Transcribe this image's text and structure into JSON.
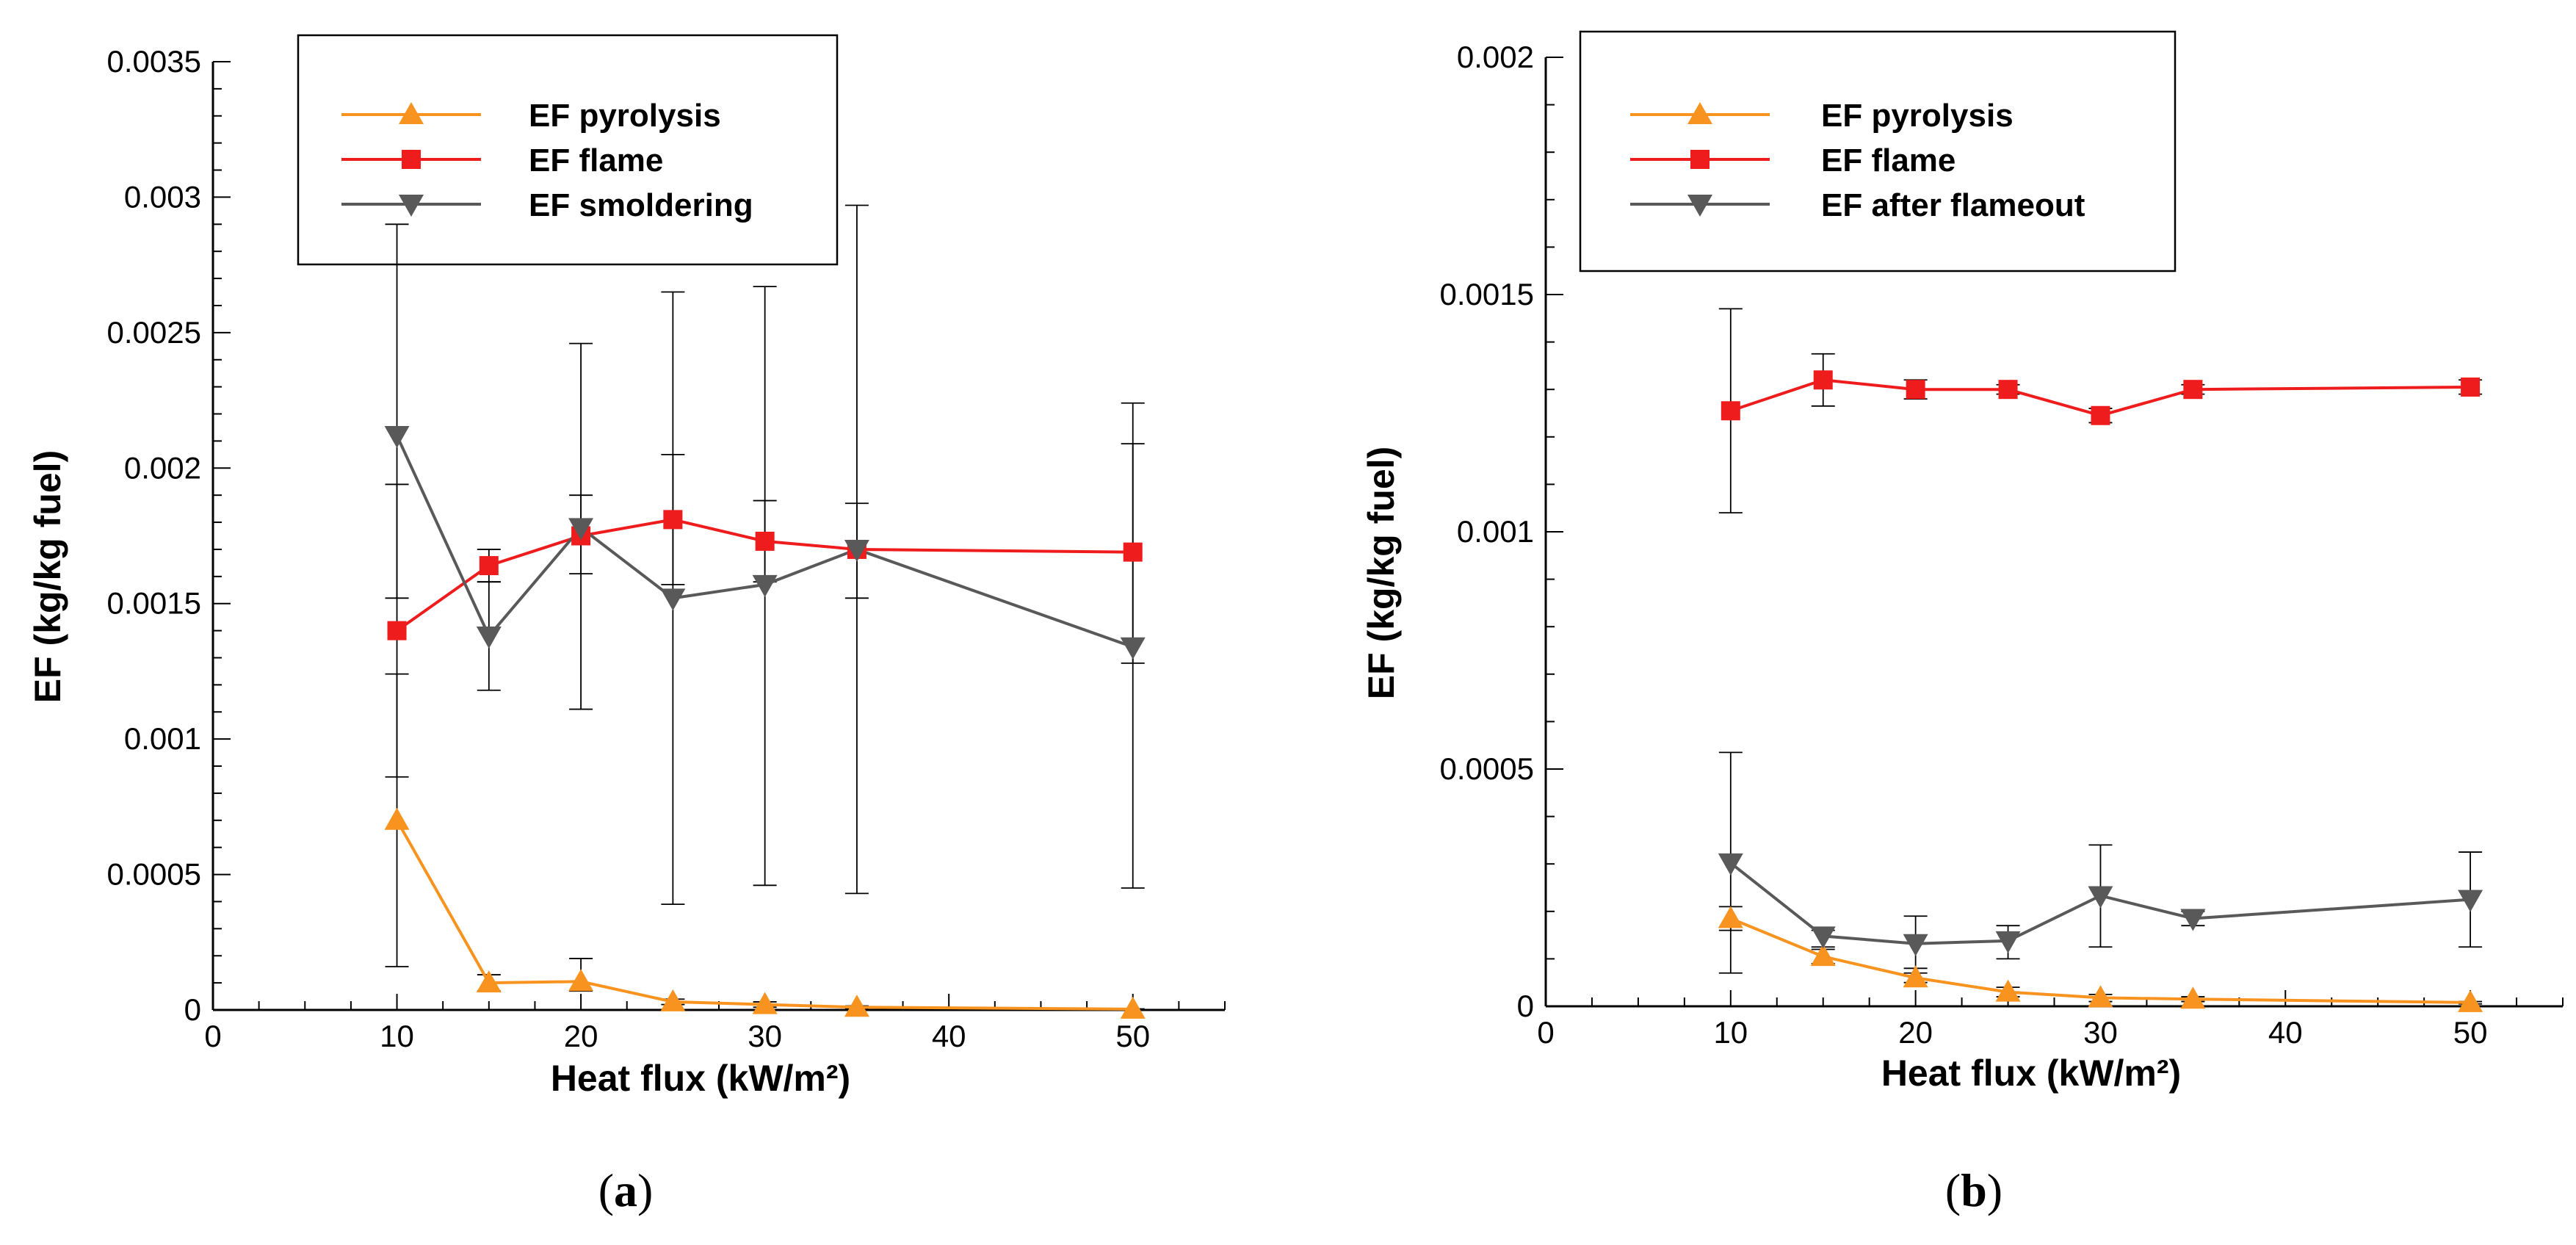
{
  "chart_data": [
    {
      "type": "line",
      "panel_label": "a",
      "xlabel": "Heat flux (kW/m²)",
      "ylabel": "EF (kg/kg fuel)",
      "xlim": [
        0,
        55
      ],
      "ylim": [
        0,
        0.0035
      ],
      "xticks": [
        0,
        10,
        20,
        30,
        40,
        50
      ],
      "yticks": [
        0,
        0.0005,
        0.001,
        0.0015,
        0.002,
        0.0025,
        0.003,
        0.0035
      ],
      "ytick_labels": [
        "0",
        "0.0005",
        "0.001",
        "0.0015",
        "0.002",
        "0.0025",
        "0.003",
        "0.0035"
      ],
      "legend_position": "top-left",
      "series": [
        {
          "name": "EF pyrolysis",
          "color": "#f7931e",
          "marker": "triangle-up",
          "x": [
            10,
            15,
            20,
            25,
            30,
            35,
            50
          ],
          "y": [
            0.0007,
            0.0001,
            0.000105,
            3e-05,
            2e-05,
            1e-05,
            3e-06
          ],
          "err_low": [
            0.00016,
            7e-05,
            7e-05,
            2e-05,
            1e-05,
            5e-06,
            2e-06
          ],
          "err_high": [
            0.00124,
            0.00013,
            0.00019,
            4e-05,
            3e-05,
            1.5e-05,
            4e-06
          ]
        },
        {
          "name": "EF flame",
          "color": "#ee1c1c",
          "marker": "square",
          "x": [
            10,
            15,
            20,
            25,
            30,
            35,
            50
          ],
          "y": [
            0.0014,
            0.00164,
            0.00175,
            0.00181,
            0.00173,
            0.0017,
            0.00169
          ],
          "err_low": [
            0.00086,
            0.00158,
            0.00161,
            0.00157,
            0.00158,
            0.00152,
            0.00128
          ],
          "err_high": [
            0.00194,
            0.0017,
            0.0019,
            0.00205,
            0.00188,
            0.00187,
            0.00209
          ]
        },
        {
          "name": "EF smoldering",
          "color": "#595959",
          "marker": "triangle-down",
          "x": [
            10,
            15,
            20,
            25,
            30,
            35,
            50
          ],
          "y": [
            0.00212,
            0.00138,
            0.00178,
            0.00152,
            0.00157,
            0.0017,
            0.00134
          ],
          "err_low": [
            0.00152,
            0.00118,
            0.00111,
            0.00039,
            0.00046,
            0.00043,
            0.00045
          ],
          "err_high": [
            0.0029,
            0.00158,
            0.00246,
            0.00265,
            0.00267,
            0.00297,
            0.00224
          ]
        }
      ]
    },
    {
      "type": "line",
      "panel_label": "b",
      "xlabel": "Heat flux (kW/m²)",
      "ylabel": "EF (kg/kg fuel)",
      "xlim": [
        0,
        55
      ],
      "ylim": [
        0,
        0.002
      ],
      "xticks": [
        0,
        10,
        20,
        30,
        40,
        50
      ],
      "yticks": [
        0,
        0.0005,
        0.001,
        0.0015,
        0.002
      ],
      "ytick_labels": [
        "0",
        "0.0005",
        "0.001",
        "0.0015",
        "0.002"
      ],
      "legend_position": "top-left",
      "series": [
        {
          "name": "EF pyrolysis",
          "color": "#f7931e",
          "marker": "triangle-up",
          "x": [
            10,
            15,
            20,
            25,
            30,
            35,
            50
          ],
          "y": [
            0.000185,
            0.000105,
            6e-05,
            3e-05,
            1.8e-05,
            1.5e-05,
            8e-06
          ],
          "err_low": [
            0.00016,
            9e-05,
            5e-05,
            2e-05,
            1e-05,
            1e-05,
            5e-06
          ],
          "err_high": [
            0.00021,
            0.00012,
            7e-05,
            4e-05,
            2.5e-05,
            2e-05,
            1e-05
          ]
        },
        {
          "name": "EF flame",
          "color": "#ee1c1c",
          "marker": "square",
          "x": [
            10,
            15,
            20,
            25,
            30,
            35,
            50
          ],
          "y": [
            0.001255,
            0.00132,
            0.0013,
            0.0013,
            0.001245,
            0.0013,
            0.001305
          ],
          "err_low": [
            0.00104,
            0.001265,
            0.00128,
            0.00129,
            0.00123,
            0.00129,
            0.00129
          ],
          "err_high": [
            0.00147,
            0.001375,
            0.00132,
            0.00131,
            0.00126,
            0.00131,
            0.00132
          ]
        },
        {
          "name": "EF after flameout",
          "color": "#595959",
          "marker": "triangle-down",
          "x": [
            10,
            15,
            20,
            25,
            30,
            35,
            50
          ],
          "y": [
            0.000302,
            0.000148,
            0.000132,
            0.000138,
            0.000233,
            0.000185,
            0.000225
          ],
          "err_low": [
            7e-05,
            0.000125,
            8e-05,
            0.0001,
            0.000125,
            0.00017,
            0.000125
          ],
          "err_high": [
            0.000535,
            0.00016,
            0.00019,
            0.00017,
            0.00034,
            0.0002,
            0.000325
          ]
        }
      ]
    }
  ]
}
